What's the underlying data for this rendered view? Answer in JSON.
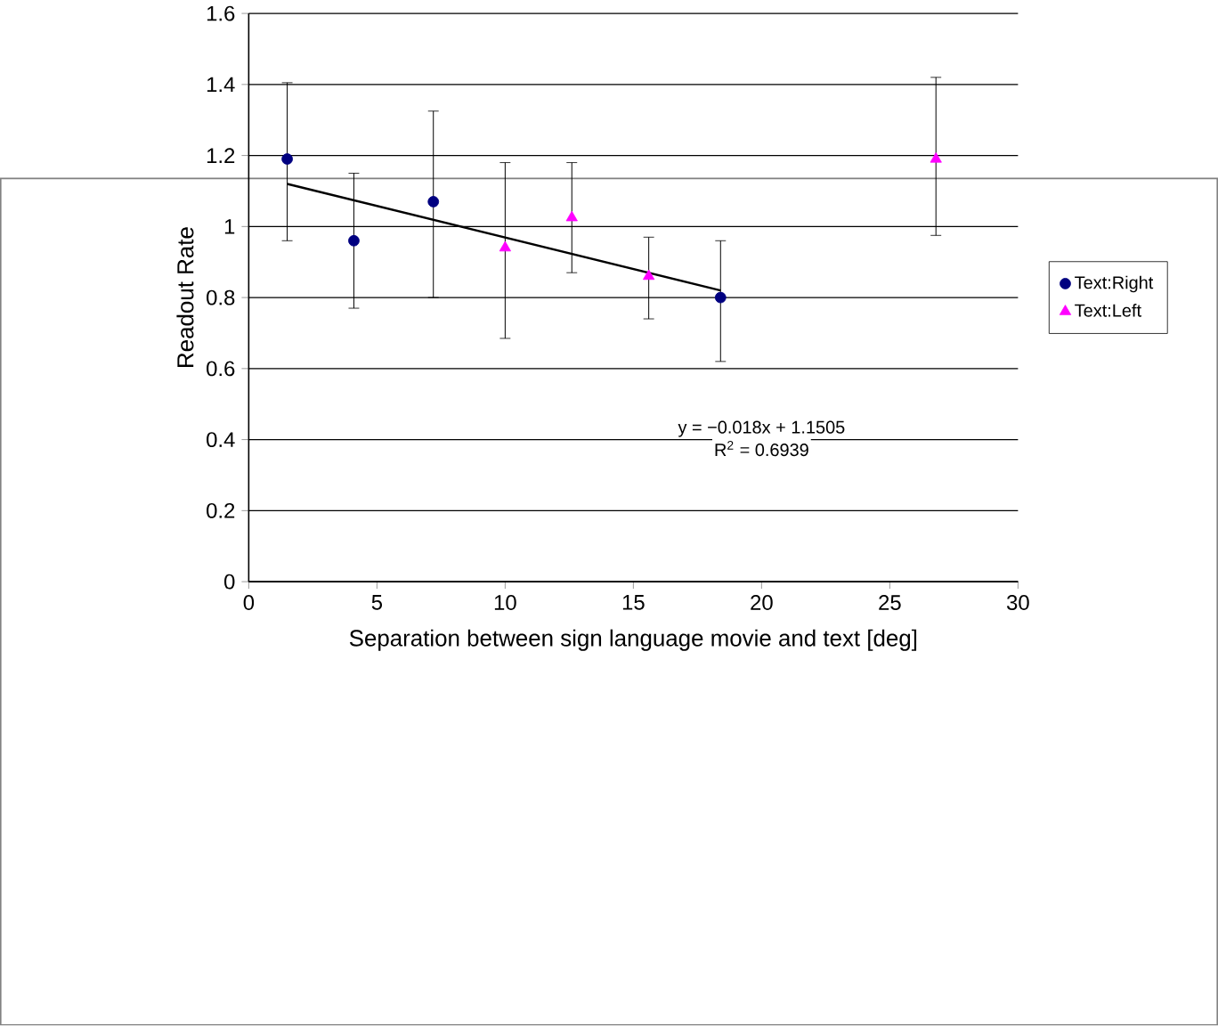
{
  "chart_data": {
    "type": "scatter",
    "xlabel": "Separation between sign language movie and text [deg]",
    "ylabel": "Readout Rate",
    "xlim": [
      0,
      30
    ],
    "xticks": [
      0,
      5,
      10,
      15,
      20,
      25,
      30
    ],
    "ylim": [
      0,
      1.6
    ],
    "yticks": [
      0,
      0.2,
      0.4,
      0.6,
      0.8,
      1,
      1.2,
      1.4,
      1.6
    ],
    "grid": "y",
    "legend": "right",
    "series": [
      {
        "name": "Text:Right",
        "color": "#000080",
        "marker": "circle",
        "x": [
          1.5,
          4.1,
          7.2,
          18.4
        ],
        "values": [
          1.19,
          0.96,
          1.07,
          0.8
        ],
        "errors": [
          [
            0.96,
            1.405
          ],
          [
            0.77,
            1.15
          ],
          [
            0.8,
            1.325
          ],
          [
            0.62,
            0.96
          ]
        ]
      },
      {
        "name": "Text:Left",
        "color": "#ff00ff",
        "marker": "triangle",
        "x": [
          10,
          12.6,
          15.6,
          26.8
        ],
        "values": [
          0.94,
          1.025,
          0.86,
          1.19
        ],
        "errors": [
          [
            0.685,
            1.18
          ],
          [
            0.87,
            1.18
          ],
          [
            0.74,
            0.97
          ],
          [
            0.975,
            1.42
          ]
        ]
      },
      {
        "type": "line",
        "color": "#000000",
        "marker": "none",
        "line_style": "solid",
        "x": [
          1.5,
          18.4
        ],
        "values": [
          1.12,
          0.82
        ]
      }
    ],
    "annotations": [
      "y = −0.018x + 1.1505",
      "R$^{2}$ = 0.6939"
    ]
  }
}
